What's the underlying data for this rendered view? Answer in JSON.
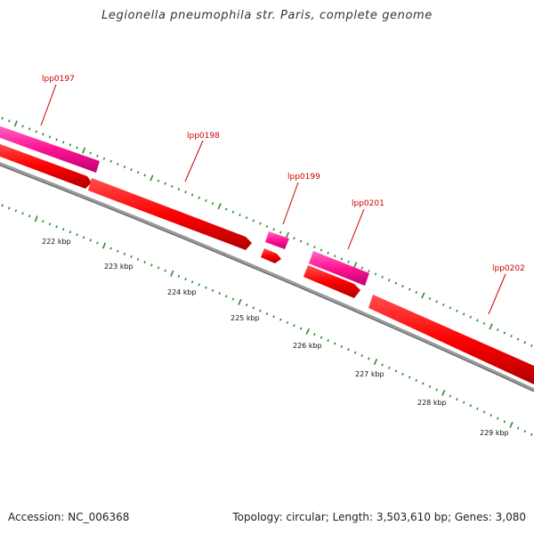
{
  "title": "Legionella pneumophila str. Paris, complete genome",
  "footer": {
    "accession": "Accession: NC_006368",
    "summary": "Topology: circular; Length: 3,503,610 bp; Genes: 3,080"
  },
  "colors": {
    "forward_gene": "#ff1493",
    "reverse_gene": "#ff0000",
    "backbone": "#808080",
    "tick": "#2a8a2a",
    "label": "#cc0000"
  },
  "gene_labels": [
    "lpp0197",
    "lpp0198",
    "lpp0199",
    "lpp0201",
    "lpp0202"
  ],
  "kbp_labels": [
    "222 kbp",
    "223 kbp",
    "224 kbp",
    "225 kbp",
    "226 kbp",
    "227 kbp",
    "228 kbp",
    "229 kbp"
  ]
}
